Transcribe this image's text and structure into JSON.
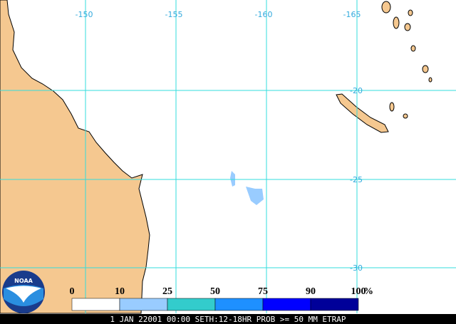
{
  "map": {
    "lon_labels": [
      "-150",
      "-155",
      "-160",
      "-165"
    ],
    "lat_labels": [
      "-20",
      "-25",
      "-30"
    ],
    "legend": {
      "labels": [
        "0",
        "10",
        "25",
        "50",
        "75",
        "90",
        "100"
      ],
      "unit": "%",
      "colors": [
        "#ffffff",
        "#99ccff",
        "#33cccc",
        "#1e90ff",
        "#0000ff",
        "#000099"
      ]
    },
    "logo": "NOAA",
    "caption": "1 JAN 22001 00:00 SETH:12-18HR PROB >= 50 MM ETRAP"
  }
}
